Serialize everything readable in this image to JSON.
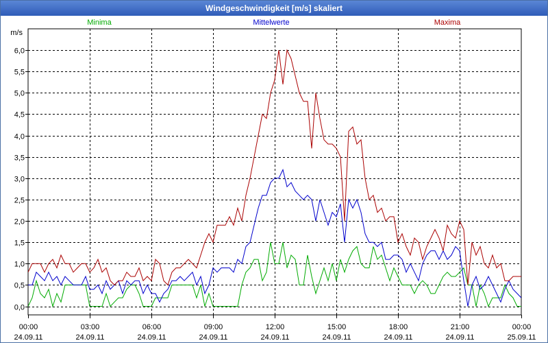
{
  "window": {
    "title": "Windgeschwindigkeit [m/s] skaliert"
  },
  "chart_data": {
    "type": "line",
    "title": "Windgeschwindigkeit [m/s] skaliert",
    "ylabel": "m/s",
    "ylim": [
      -0.2,
      6.5
    ],
    "y_ticks": [
      0,
      0.5,
      1,
      1.5,
      2,
      2.5,
      3,
      3.5,
      4,
      4.5,
      5,
      5.5,
      6
    ],
    "y_tick_labels": [
      "0,0",
      "0,5",
      "1,0",
      "1,5",
      "2,0",
      "2,5",
      "3,0",
      "3,5",
      "4,0",
      "4,5",
      "5,0",
      "5,5",
      "6,0"
    ],
    "xlim": [
      0,
      24
    ],
    "x_ticks": [
      0,
      3,
      6,
      9,
      12,
      15,
      18,
      21,
      24
    ],
    "x_tick_labels": [
      {
        "time": "00:00",
        "date": "24.09.11"
      },
      {
        "time": "03:00",
        "date": "24.09.11"
      },
      {
        "time": "06:00",
        "date": "24.09.11"
      },
      {
        "time": "09:00",
        "date": "24.09.11"
      },
      {
        "time": "12:00",
        "date": "24.09.11"
      },
      {
        "time": "15:00",
        "date": "24.09.11"
      },
      {
        "time": "18:00",
        "date": "24.09.11"
      },
      {
        "time": "21:00",
        "date": "24.09.11"
      },
      {
        "time": "00:00",
        "date": "25.09.11"
      }
    ],
    "grid": true,
    "legend": [
      "Minima",
      "Mittelwerte",
      "Maxima"
    ],
    "x": [
      0.0,
      0.2,
      0.4,
      0.6,
      0.8,
      1.0,
      1.2,
      1.4,
      1.6,
      1.8,
      2.0,
      2.2,
      2.4,
      2.6,
      2.8,
      3.0,
      3.2,
      3.4,
      3.6,
      3.8,
      4.0,
      4.2,
      4.4,
      4.6,
      4.8,
      5.0,
      5.2,
      5.4,
      5.6,
      5.8,
      6.0,
      6.2,
      6.4,
      6.6,
      6.8,
      7.0,
      7.2,
      7.4,
      7.6,
      7.8,
      8.0,
      8.2,
      8.4,
      8.6,
      8.8,
      9.0,
      9.2,
      9.4,
      9.6,
      9.8,
      10.0,
      10.2,
      10.4,
      10.6,
      10.8,
      11.0,
      11.2,
      11.4,
      11.6,
      11.8,
      12.0,
      12.2,
      12.4,
      12.6,
      12.8,
      13.0,
      13.2,
      13.4,
      13.6,
      13.8,
      14.0,
      14.2,
      14.4,
      14.6,
      14.8,
      15.0,
      15.2,
      15.4,
      15.6,
      15.8,
      16.0,
      16.2,
      16.4,
      16.6,
      16.8,
      17.0,
      17.2,
      17.4,
      17.6,
      17.8,
      18.0,
      18.2,
      18.4,
      18.6,
      18.8,
      19.0,
      19.2,
      19.4,
      19.6,
      19.8,
      20.0,
      20.2,
      20.4,
      20.6,
      20.8,
      21.0,
      21.2,
      21.4,
      21.6,
      21.8,
      22.0,
      22.2,
      22.4,
      22.6,
      22.8,
      23.0,
      23.2,
      23.4,
      23.6,
      23.8,
      24.0
    ],
    "series": [
      {
        "name": "Minima",
        "color": "#00aa00",
        "values": [
          0.0,
          0.2,
          0.6,
          0.3,
          0.2,
          0.4,
          0.0,
          0.3,
          0.1,
          0.5,
          0.5,
          0.5,
          0.5,
          0.5,
          0.5,
          0.0,
          0.0,
          0.0,
          0.0,
          0.3,
          0.0,
          0.1,
          0.2,
          0.2,
          0.4,
          0.5,
          0.5,
          0.3,
          0.0,
          0.0,
          0.0,
          0.2,
          0.2,
          0.2,
          0.2,
          0.5,
          0.5,
          0.5,
          0.5,
          0.5,
          0.5,
          0.2,
          0.5,
          0.0,
          0.3,
          0.0,
          0.0,
          0.0,
          0.0,
          0.0,
          0.0,
          0.0,
          0.5,
          0.8,
          0.9,
          1.1,
          1.1,
          0.6,
          0.8,
          1.5,
          1.0,
          1.0,
          1.5,
          0.9,
          1.2,
          1.1,
          0.5,
          0.5,
          1.2,
          0.7,
          0.3,
          0.6,
          0.9,
          0.6,
          1.0,
          0.6,
          1.1,
          0.8,
          1.1,
          1.3,
          1.4,
          1.0,
          0.9,
          0.9,
          1.4,
          1.1,
          1.2,
          0.9,
          0.6,
          0.9,
          0.7,
          0.5,
          0.5,
          0.5,
          0.3,
          0.5,
          0.6,
          0.5,
          0.3,
          0.3,
          0.5,
          0.7,
          0.8,
          0.7,
          0.7,
          0.8,
          0.9,
          0.5,
          0.5,
          0.0,
          0.5,
          0.3,
          0.0,
          0.2,
          0.2,
          0.2,
          0.5,
          0.3,
          0.2,
          0.0,
          0.0
        ]
      },
      {
        "name": "Mittelwerte",
        "color": "#0000cc",
        "values": [
          0.5,
          0.5,
          0.8,
          0.7,
          0.6,
          0.8,
          0.6,
          0.7,
          0.5,
          0.7,
          0.6,
          0.5,
          0.5,
          0.5,
          0.7,
          0.4,
          0.4,
          0.5,
          0.3,
          0.6,
          0.4,
          0.5,
          0.6,
          0.3,
          0.6,
          0.5,
          0.6,
          0.6,
          0.3,
          0.5,
          0.3,
          0.3,
          0.1,
          0.3,
          0.4,
          0.6,
          0.6,
          0.7,
          0.6,
          0.7,
          0.8,
          0.5,
          0.7,
          0.3,
          0.5,
          0.9,
          0.8,
          0.9,
          0.9,
          0.9,
          0.8,
          1.1,
          1.0,
          1.4,
          1.5,
          1.9,
          2.3,
          2.6,
          2.6,
          2.9,
          3.0,
          3.0,
          3.2,
          2.8,
          2.9,
          2.7,
          2.6,
          2.5,
          2.6,
          2.5,
          2.0,
          2.5,
          2.2,
          1.9,
          2.2,
          2.1,
          2.4,
          1.5,
          2.5,
          2.3,
          2.5,
          2.2,
          1.7,
          1.5,
          1.5,
          1.4,
          1.5,
          1.1,
          1.1,
          1.2,
          1.2,
          1.1,
          0.8,
          1.0,
          0.8,
          0.6,
          1.0,
          1.2,
          1.3,
          1.3,
          1.1,
          1.3,
          1.1,
          1.2,
          1.4,
          1.3,
          0.6,
          0.0,
          0.5,
          0.7,
          0.4,
          0.5,
          0.7,
          0.5,
          0.3,
          0.1,
          0.4,
          0.6,
          0.4,
          0.3,
          0.2
        ]
      },
      {
        "name": "Maxima",
        "color": "#aa0000",
        "values": [
          0.8,
          1.0,
          1.0,
          1.0,
          0.8,
          1.0,
          1.1,
          0.9,
          1.2,
          1.0,
          1.0,
          0.8,
          0.9,
          1.0,
          1.0,
          0.8,
          0.9,
          1.1,
          0.8,
          0.9,
          0.6,
          0.5,
          0.6,
          0.6,
          0.8,
          0.7,
          0.7,
          0.9,
          0.6,
          0.7,
          0.6,
          1.1,
          1.0,
          0.6,
          0.5,
          0.8,
          0.9,
          0.9,
          1.0,
          1.1,
          1.0,
          0.9,
          1.2,
          1.5,
          1.7,
          1.5,
          1.9,
          1.9,
          1.9,
          2.1,
          1.9,
          2.3,
          2.0,
          2.6,
          3.0,
          3.5,
          4.0,
          4.5,
          4.4,
          5.0,
          5.3,
          6.0,
          5.2,
          6.0,
          5.8,
          5.4,
          5.0,
          4.8,
          4.8,
          3.7,
          5.0,
          4.4,
          3.9,
          3.8,
          3.8,
          3.7,
          3.5,
          2.0,
          4.1,
          4.2,
          3.8,
          3.9,
          3.0,
          2.5,
          2.6,
          2.2,
          2.3,
          2.0,
          2.1,
          2.1,
          1.5,
          1.7,
          1.4,
          1.2,
          1.6,
          1.5,
          1.1,
          1.4,
          1.6,
          1.8,
          1.6,
          1.3,
          1.9,
          1.7,
          1.6,
          2.0,
          1.8,
          0.5,
          1.5,
          1.2,
          1.4,
          1.0,
          0.9,
          1.2,
          0.9,
          1.0,
          0.6,
          0.6,
          0.7,
          0.7,
          0.7
        ]
      }
    ]
  }
}
